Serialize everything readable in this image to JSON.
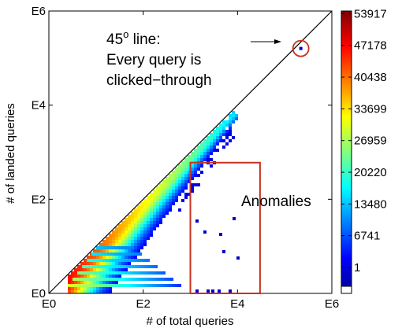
{
  "chart_data": {
    "type": "heatmap",
    "xlabel": "# of total queries",
    "ylabel": "# of landed queries",
    "x_scale": "log",
    "y_scale": "log",
    "xlim": [
      1,
      1000000
    ],
    "ylim": [
      1,
      1000000
    ],
    "x_tick_labels": [
      "E0",
      "E2",
      "E4",
      "E6"
    ],
    "y_tick_labels": [
      "E0",
      "E2",
      "E4",
      "E6"
    ],
    "x_tick_values": [
      1,
      100,
      10000,
      1000000
    ],
    "y_tick_values": [
      1,
      100,
      10000,
      1000000
    ],
    "colorbar": {
      "colormap": "jet",
      "min": 1,
      "max": 60000,
      "tick_labels": [
        "1",
        "6741",
        "13480",
        "20220",
        "26959",
        "33699",
        "40438",
        "47178",
        "53917"
      ],
      "tick_values": [
        1,
        6741,
        13480,
        20220,
        26959,
        33699,
        40438,
        47178,
        53917
      ]
    },
    "reference_line": {
      "from": [
        1,
        1
      ],
      "to": [
        1000000,
        1000000
      ]
    },
    "annotations": {
      "line_note": [
        "45",
        "o",
        " line:",
        "Every query is",
        "clicked−through"
      ],
      "anomalies": "Anomalies"
    },
    "anomaly_box": {
      "x": [
        1000,
        30000
      ],
      "y": [
        1,
        600
      ]
    },
    "circled_point": {
      "x": 220000,
      "y": 160000
    },
    "grid": false,
    "legend": "none"
  }
}
